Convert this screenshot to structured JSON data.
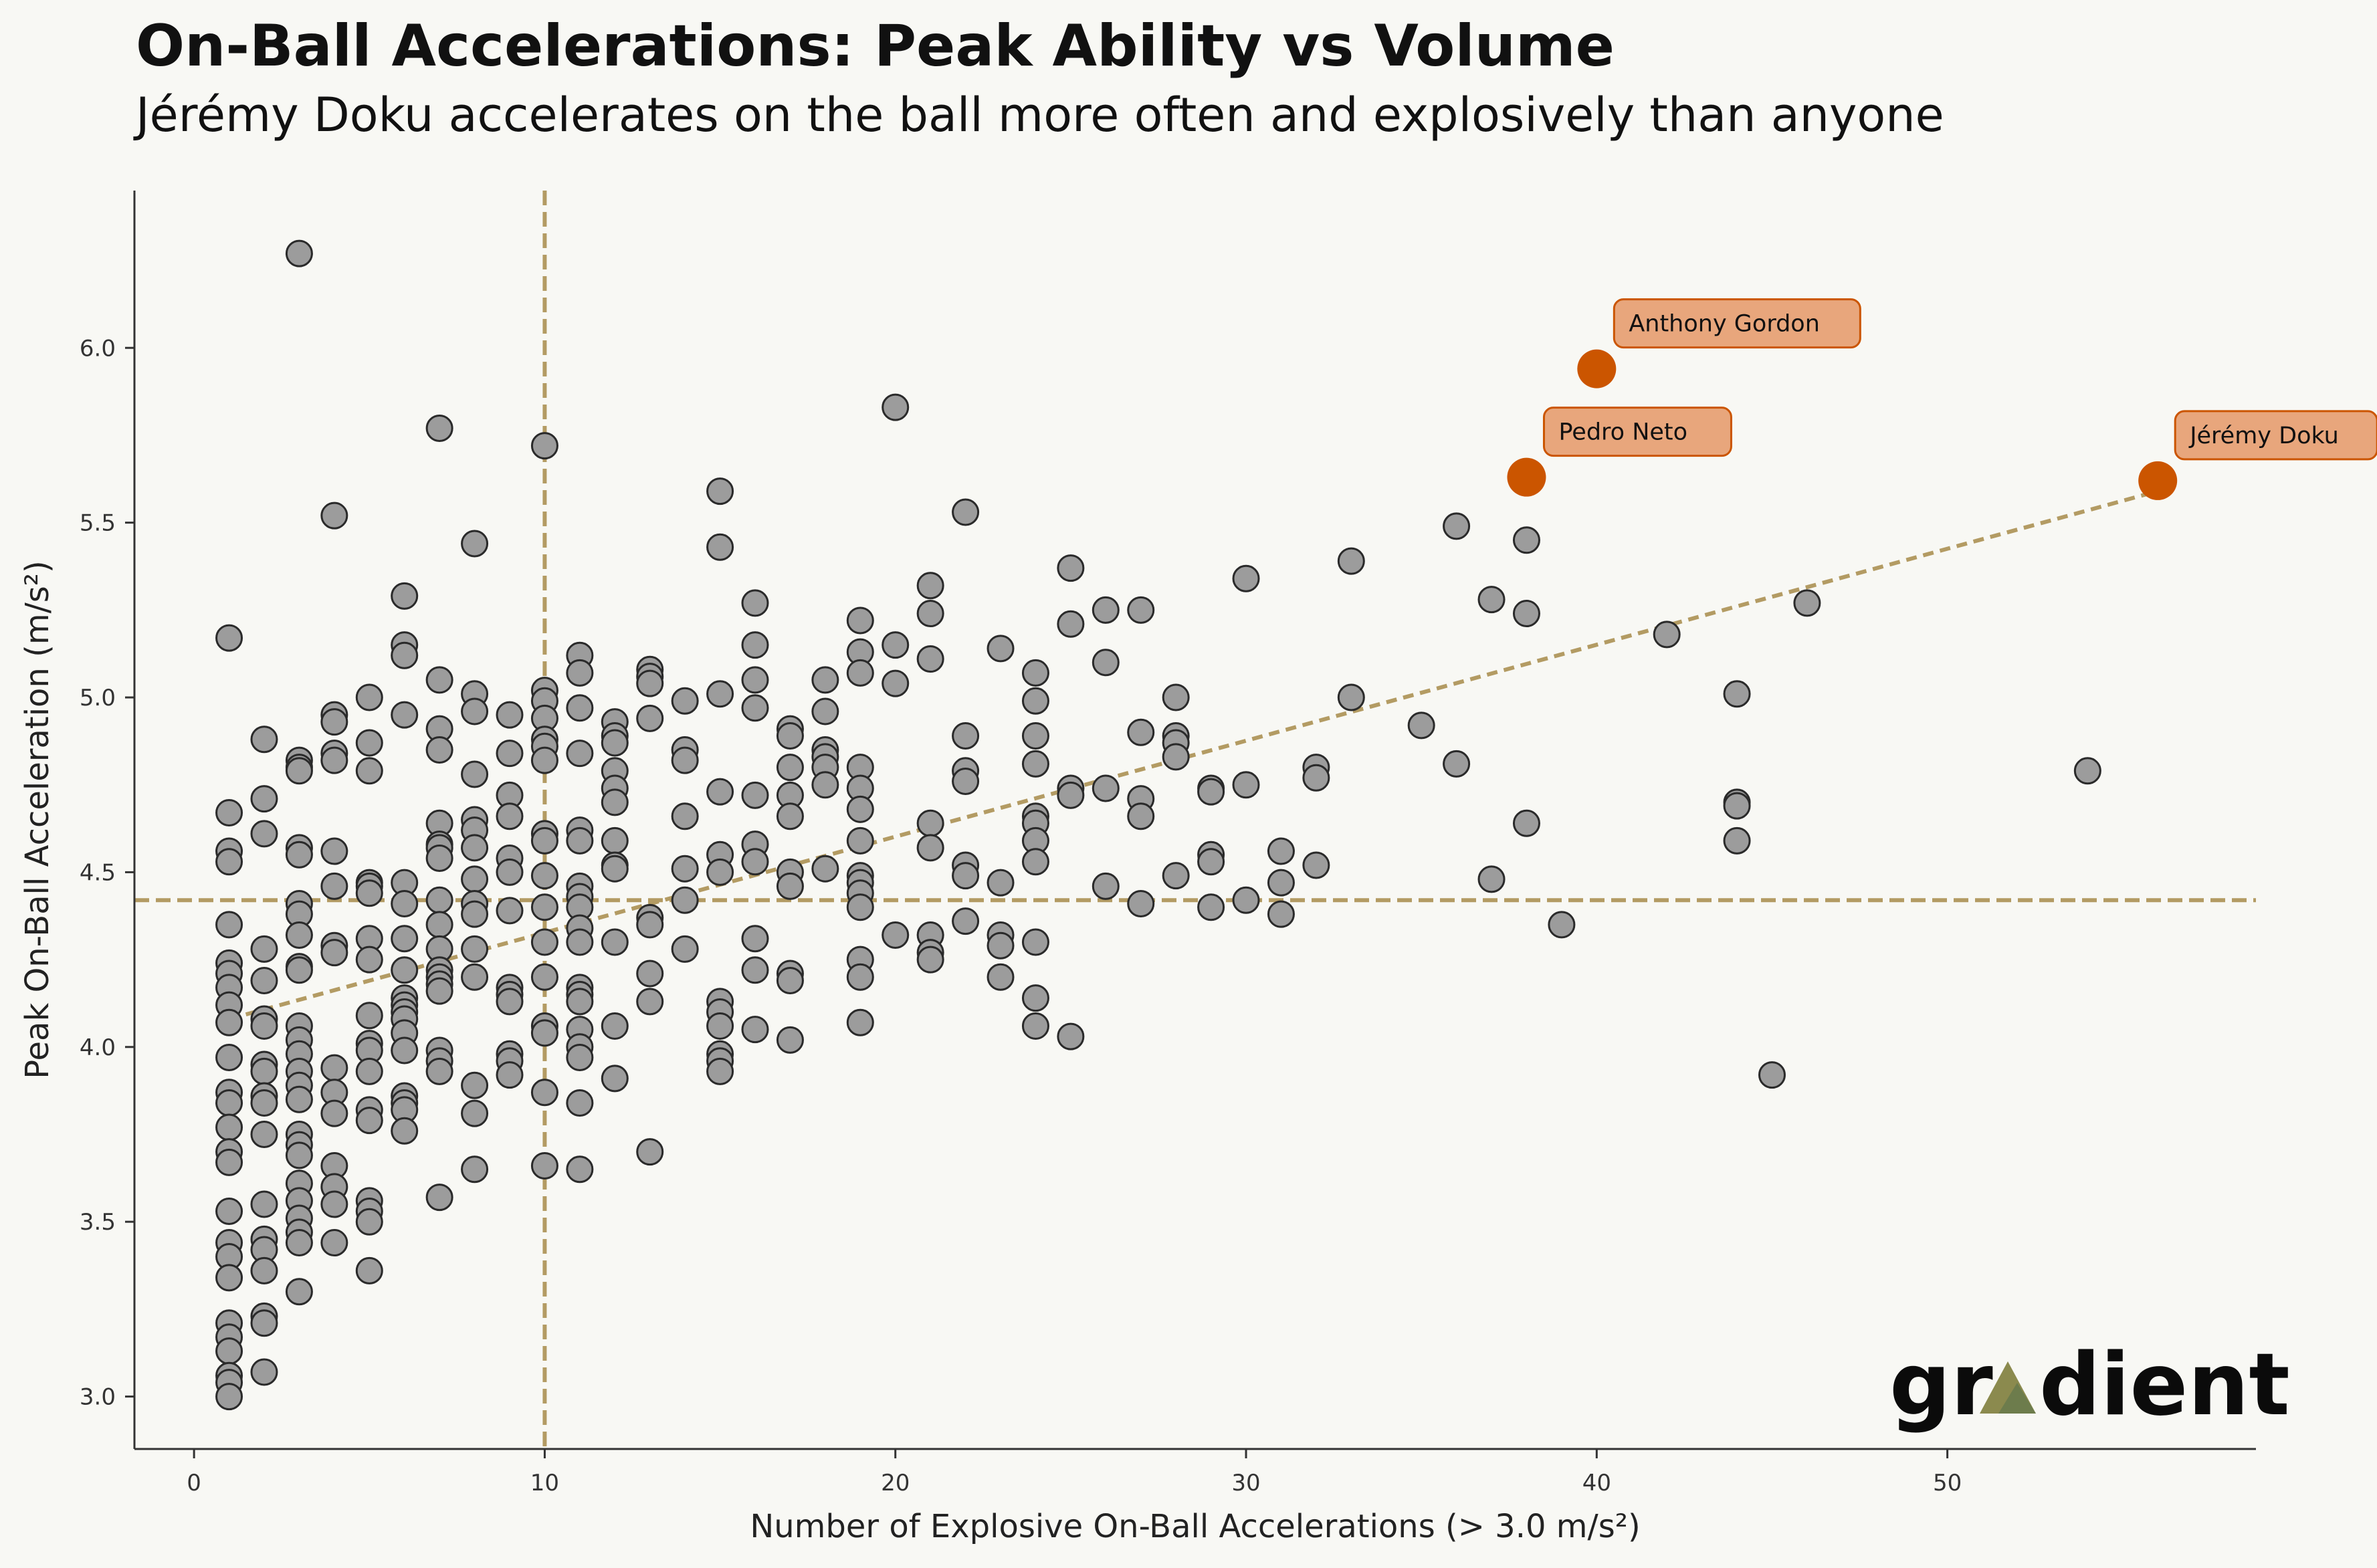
{
  "chart_data": {
    "type": "scatter",
    "title": "On-Ball Accelerations: Peak Ability vs Volume",
    "subtitle": "Jérémy Doku accelerates on the ball more often and explosively than anyone",
    "xlabel": "Number of Explosive On-Ball Accelerations (> 3.0 m/s²)",
    "ylabel": "Peak On-Ball Acceleration (m/s²)",
    "xlim": [
      -1.7,
      58.8
    ],
    "ylim": [
      2.85,
      6.45
    ],
    "x_ticks": [
      0,
      10,
      20,
      30,
      40,
      50
    ],
    "y_ticks": [
      3.0,
      3.5,
      4.0,
      4.5,
      5.0,
      5.5,
      6.0
    ],
    "x_tick_labels": [
      "0",
      "10",
      "20",
      "30",
      "40",
      "50"
    ],
    "y_tick_labels": [
      "3.0",
      "3.5",
      "4.0",
      "4.5",
      "5.0",
      "5.5",
      "6.0"
    ],
    "reference_lines": {
      "median_x": 10,
      "median_y": 4.42
    },
    "trend_line": {
      "x": [
        1,
        56
      ],
      "y": [
        4.08,
        5.59
      ]
    },
    "colors": {
      "background": "#f8f8f4",
      "point_fill": "#9c9c9c",
      "point_edge": "#2a2a2a",
      "highlight": "#cb5500",
      "annotation_fill": "#e8a67c",
      "reference": "#b39b63",
      "trend": "#b39b63",
      "axis": "#333333"
    },
    "highlights": [
      {
        "name": "Anthony Gordon",
        "x": 40,
        "y": 5.94
      },
      {
        "name": "Pedro Neto",
        "x": 38,
        "y": 5.63
      },
      {
        "name": "Jérémy Doku",
        "x": 56,
        "y": 5.62
      }
    ],
    "points": [
      [
        1,
        5.17
      ],
      [
        1,
        4.67
      ],
      [
        1,
        4.56
      ],
      [
        1,
        4.53
      ],
      [
        1,
        4.35
      ],
      [
        1,
        4.24
      ],
      [
        1,
        4.21
      ],
      [
        1,
        4.17
      ],
      [
        1,
        4.12
      ],
      [
        1,
        4.07
      ],
      [
        1,
        3.97
      ],
      [
        1,
        3.87
      ],
      [
        1,
        3.84
      ],
      [
        1,
        3.77
      ],
      [
        1,
        3.7
      ],
      [
        1,
        3.67
      ],
      [
        1,
        3.53
      ],
      [
        1,
        3.44
      ],
      [
        1,
        3.4
      ],
      [
        1,
        3.34
      ],
      [
        1,
        3.21
      ],
      [
        1,
        3.17
      ],
      [
        1,
        3.13
      ],
      [
        1,
        3.06
      ],
      [
        1,
        3.04
      ],
      [
        1,
        3.0
      ],
      [
        2,
        4.88
      ],
      [
        2,
        4.71
      ],
      [
        2,
        4.61
      ],
      [
        2,
        4.28
      ],
      [
        2,
        4.19
      ],
      [
        2,
        4.08
      ],
      [
        2,
        4.06
      ],
      [
        2,
        3.95
      ],
      [
        2,
        3.93
      ],
      [
        2,
        3.86
      ],
      [
        2,
        3.84
      ],
      [
        2,
        3.75
      ],
      [
        2,
        3.55
      ],
      [
        2,
        3.45
      ],
      [
        2,
        3.42
      ],
      [
        2,
        3.36
      ],
      [
        2,
        3.23
      ],
      [
        2,
        3.21
      ],
      [
        2,
        3.07
      ],
      [
        3,
        6.27
      ],
      [
        3,
        4.82
      ],
      [
        3,
        4.8
      ],
      [
        3,
        4.79
      ],
      [
        3,
        4.57
      ],
      [
        3,
        4.55
      ],
      [
        3,
        4.41
      ],
      [
        3,
        4.38
      ],
      [
        3,
        4.32
      ],
      [
        3,
        4.23
      ],
      [
        3,
        4.22
      ],
      [
        3,
        4.06
      ],
      [
        3,
        4.02
      ],
      [
        3,
        3.98
      ],
      [
        3,
        3.93
      ],
      [
        3,
        3.89
      ],
      [
        3,
        3.85
      ],
      [
        3,
        3.75
      ],
      [
        3,
        3.72
      ],
      [
        3,
        3.69
      ],
      [
        3,
        3.61
      ],
      [
        3,
        3.56
      ],
      [
        3,
        3.51
      ],
      [
        3,
        3.47
      ],
      [
        3,
        3.44
      ],
      [
        3,
        3.3
      ],
      [
        4,
        5.52
      ],
      [
        4,
        4.95
      ],
      [
        4,
        4.93
      ],
      [
        4,
        4.84
      ],
      [
        4,
        4.82
      ],
      [
        4,
        4.56
      ],
      [
        4,
        4.46
      ],
      [
        4,
        4.29
      ],
      [
        4,
        4.27
      ],
      [
        4,
        3.94
      ],
      [
        4,
        3.87
      ],
      [
        4,
        3.81
      ],
      [
        4,
        3.66
      ],
      [
        4,
        3.6
      ],
      [
        4,
        3.55
      ],
      [
        4,
        3.44
      ],
      [
        5,
        5.0
      ],
      [
        5,
        4.87
      ],
      [
        5,
        4.79
      ],
      [
        5,
        4.47
      ],
      [
        5,
        4.46
      ],
      [
        5,
        4.44
      ],
      [
        5,
        4.31
      ],
      [
        5,
        4.25
      ],
      [
        5,
        4.09
      ],
      [
        5,
        4.01
      ],
      [
        5,
        3.99
      ],
      [
        5,
        3.93
      ],
      [
        5,
        3.82
      ],
      [
        5,
        3.79
      ],
      [
        5,
        3.56
      ],
      [
        5,
        3.53
      ],
      [
        5,
        3.5
      ],
      [
        5,
        3.36
      ],
      [
        6,
        5.29
      ],
      [
        6,
        5.15
      ],
      [
        6,
        5.12
      ],
      [
        6,
        4.95
      ],
      [
        6,
        4.47
      ],
      [
        6,
        4.41
      ],
      [
        6,
        4.31
      ],
      [
        6,
        4.22
      ],
      [
        6,
        4.14
      ],
      [
        6,
        4.12
      ],
      [
        6,
        4.1
      ],
      [
        6,
        4.08
      ],
      [
        6,
        4.04
      ],
      [
        6,
        3.99
      ],
      [
        6,
        3.86
      ],
      [
        6,
        3.84
      ],
      [
        6,
        3.82
      ],
      [
        6,
        3.76
      ],
      [
        7,
        5.77
      ],
      [
        7,
        5.05
      ],
      [
        7,
        4.91
      ],
      [
        7,
        4.85
      ],
      [
        7,
        4.64
      ],
      [
        7,
        4.58
      ],
      [
        7,
        4.57
      ],
      [
        7,
        4.54
      ],
      [
        7,
        4.42
      ],
      [
        7,
        4.35
      ],
      [
        7,
        4.28
      ],
      [
        7,
        4.22
      ],
      [
        7,
        4.2
      ],
      [
        7,
        4.18
      ],
      [
        7,
        4.16
      ],
      [
        7,
        3.99
      ],
      [
        7,
        3.96
      ],
      [
        7,
        3.93
      ],
      [
        7,
        3.57
      ],
      [
        8,
        5.44
      ],
      [
        8,
        5.01
      ],
      [
        8,
        4.96
      ],
      [
        8,
        4.78
      ],
      [
        8,
        4.65
      ],
      [
        8,
        4.62
      ],
      [
        8,
        4.57
      ],
      [
        8,
        4.48
      ],
      [
        8,
        4.41
      ],
      [
        8,
        4.38
      ],
      [
        8,
        4.28
      ],
      [
        8,
        4.2
      ],
      [
        8,
        3.89
      ],
      [
        8,
        3.81
      ],
      [
        8,
        3.65
      ],
      [
        9,
        4.95
      ],
      [
        9,
        4.84
      ],
      [
        9,
        4.72
      ],
      [
        9,
        4.66
      ],
      [
        9,
        4.54
      ],
      [
        9,
        4.5
      ],
      [
        9,
        4.39
      ],
      [
        9,
        4.17
      ],
      [
        9,
        4.15
      ],
      [
        9,
        4.13
      ],
      [
        9,
        3.98
      ],
      [
        9,
        3.96
      ],
      [
        9,
        3.92
      ],
      [
        10,
        5.72
      ],
      [
        10,
        5.02
      ],
      [
        10,
        4.99
      ],
      [
        10,
        4.94
      ],
      [
        10,
        4.88
      ],
      [
        10,
        4.86
      ],
      [
        10,
        4.82
      ],
      [
        10,
        4.61
      ],
      [
        10,
        4.59
      ],
      [
        10,
        4.49
      ],
      [
        10,
        4.4
      ],
      [
        10,
        4.3
      ],
      [
        10,
        4.2
      ],
      [
        10,
        4.06
      ],
      [
        10,
        4.04
      ],
      [
        10,
        3.87
      ],
      [
        10,
        3.66
      ],
      [
        11,
        5.12
      ],
      [
        11,
        5.07
      ],
      [
        11,
        4.97
      ],
      [
        11,
        4.84
      ],
      [
        11,
        4.62
      ],
      [
        11,
        4.59
      ],
      [
        11,
        4.46
      ],
      [
        11,
        4.43
      ],
      [
        11,
        4.4
      ],
      [
        11,
        4.34
      ],
      [
        11,
        4.3
      ],
      [
        11,
        4.17
      ],
      [
        11,
        4.15
      ],
      [
        11,
        4.13
      ],
      [
        11,
        4.05
      ],
      [
        11,
        4.0
      ],
      [
        11,
        3.97
      ],
      [
        11,
        3.84
      ],
      [
        11,
        3.65
      ],
      [
        12,
        4.93
      ],
      [
        12,
        4.89
      ],
      [
        12,
        4.87
      ],
      [
        12,
        4.79
      ],
      [
        12,
        4.74
      ],
      [
        12,
        4.7
      ],
      [
        12,
        4.59
      ],
      [
        12,
        4.52
      ],
      [
        12,
        4.51
      ],
      [
        12,
        4.3
      ],
      [
        12,
        4.06
      ],
      [
        12,
        3.91
      ],
      [
        13,
        5.08
      ],
      [
        13,
        5.06
      ],
      [
        13,
        5.04
      ],
      [
        13,
        4.94
      ],
      [
        13,
        4.37
      ],
      [
        13,
        4.35
      ],
      [
        13,
        4.21
      ],
      [
        13,
        4.13
      ],
      [
        13,
        3.7
      ],
      [
        14,
        4.99
      ],
      [
        14,
        4.85
      ],
      [
        14,
        4.82
      ],
      [
        14,
        4.66
      ],
      [
        14,
        4.51
      ],
      [
        14,
        4.42
      ],
      [
        14,
        4.28
      ],
      [
        15,
        5.59
      ],
      [
        15,
        5.43
      ],
      [
        15,
        5.01
      ],
      [
        15,
        4.73
      ],
      [
        15,
        4.55
      ],
      [
        15,
        4.5
      ],
      [
        15,
        4.13
      ],
      [
        15,
        4.1
      ],
      [
        15,
        4.06
      ],
      [
        15,
        3.98
      ],
      [
        15,
        3.96
      ],
      [
        15,
        3.93
      ],
      [
        16,
        5.27
      ],
      [
        16,
        5.15
      ],
      [
        16,
        5.05
      ],
      [
        16,
        4.97
      ],
      [
        16,
        4.72
      ],
      [
        16,
        4.58
      ],
      [
        16,
        4.53
      ],
      [
        16,
        4.31
      ],
      [
        16,
        4.22
      ],
      [
        16,
        4.05
      ],
      [
        17,
        4.91
      ],
      [
        17,
        4.89
      ],
      [
        17,
        4.8
      ],
      [
        17,
        4.72
      ],
      [
        17,
        4.66
      ],
      [
        17,
        4.5
      ],
      [
        17,
        4.46
      ],
      [
        17,
        4.21
      ],
      [
        17,
        4.19
      ],
      [
        17,
        4.02
      ],
      [
        18,
        5.05
      ],
      [
        18,
        4.96
      ],
      [
        18,
        4.85
      ],
      [
        18,
        4.83
      ],
      [
        18,
        4.8
      ],
      [
        18,
        4.75
      ],
      [
        18,
        4.51
      ],
      [
        19,
        5.22
      ],
      [
        19,
        5.13
      ],
      [
        19,
        5.07
      ],
      [
        19,
        4.8
      ],
      [
        19,
        4.74
      ],
      [
        19,
        4.68
      ],
      [
        19,
        4.59
      ],
      [
        19,
        4.49
      ],
      [
        19,
        4.47
      ],
      [
        19,
        4.44
      ],
      [
        19,
        4.4
      ],
      [
        19,
        4.25
      ],
      [
        19,
        4.2
      ],
      [
        19,
        4.07
      ],
      [
        20,
        5.83
      ],
      [
        20,
        5.15
      ],
      [
        20,
        5.04
      ],
      [
        20,
        4.32
      ],
      [
        21,
        5.32
      ],
      [
        21,
        5.24
      ],
      [
        21,
        5.11
      ],
      [
        21,
        4.64
      ],
      [
        21,
        4.57
      ],
      [
        21,
        4.32
      ],
      [
        21,
        4.27
      ],
      [
        21,
        4.25
      ],
      [
        22,
        5.53
      ],
      [
        22,
        4.89
      ],
      [
        22,
        4.79
      ],
      [
        22,
        4.76
      ],
      [
        22,
        4.52
      ],
      [
        22,
        4.49
      ],
      [
        22,
        4.36
      ],
      [
        23,
        5.14
      ],
      [
        23,
        4.47
      ],
      [
        23,
        4.32
      ],
      [
        23,
        4.29
      ],
      [
        23,
        4.2
      ],
      [
        24,
        5.07
      ],
      [
        24,
        4.99
      ],
      [
        24,
        4.89
      ],
      [
        24,
        4.81
      ],
      [
        24,
        4.66
      ],
      [
        24,
        4.64
      ],
      [
        24,
        4.59
      ],
      [
        24,
        4.53
      ],
      [
        24,
        4.3
      ],
      [
        24,
        4.14
      ],
      [
        24,
        4.06
      ],
      [
        25,
        5.37
      ],
      [
        25,
        5.21
      ],
      [
        25,
        4.74
      ],
      [
        25,
        4.72
      ],
      [
        25,
        4.03
      ],
      [
        26,
        5.25
      ],
      [
        26,
        5.1
      ],
      [
        26,
        4.74
      ],
      [
        26,
        4.46
      ],
      [
        27,
        5.25
      ],
      [
        27,
        4.9
      ],
      [
        27,
        4.71
      ],
      [
        27,
        4.66
      ],
      [
        27,
        4.41
      ],
      [
        28,
        5.0
      ],
      [
        28,
        4.89
      ],
      [
        28,
        4.87
      ],
      [
        28,
        4.83
      ],
      [
        28,
        4.49
      ],
      [
        29,
        4.74
      ],
      [
        29,
        4.73
      ],
      [
        29,
        4.55
      ],
      [
        29,
        4.53
      ],
      [
        29,
        4.4
      ],
      [
        30,
        5.34
      ],
      [
        30,
        4.75
      ],
      [
        30,
        4.42
      ],
      [
        31,
        4.56
      ],
      [
        31,
        4.47
      ],
      [
        31,
        4.38
      ],
      [
        32,
        4.8
      ],
      [
        32,
        4.77
      ],
      [
        32,
        4.52
      ],
      [
        33,
        5.39
      ],
      [
        33,
        5.0
      ],
      [
        35,
        4.92
      ],
      [
        36,
        5.49
      ],
      [
        36,
        4.81
      ],
      [
        37,
        5.28
      ],
      [
        37,
        4.48
      ],
      [
        38,
        5.45
      ],
      [
        38,
        5.24
      ],
      [
        38,
        4.64
      ],
      [
        39,
        4.35
      ],
      [
        42,
        5.18
      ],
      [
        44,
        5.01
      ],
      [
        44,
        4.7
      ],
      [
        44,
        4.69
      ],
      [
        44,
        4.59
      ],
      [
        45,
        3.92
      ],
      [
        46,
        5.27
      ],
      [
        54,
        4.79
      ]
    ]
  },
  "branding": {
    "logo_text_left": "gr",
    "logo_text_right": "dient"
  }
}
